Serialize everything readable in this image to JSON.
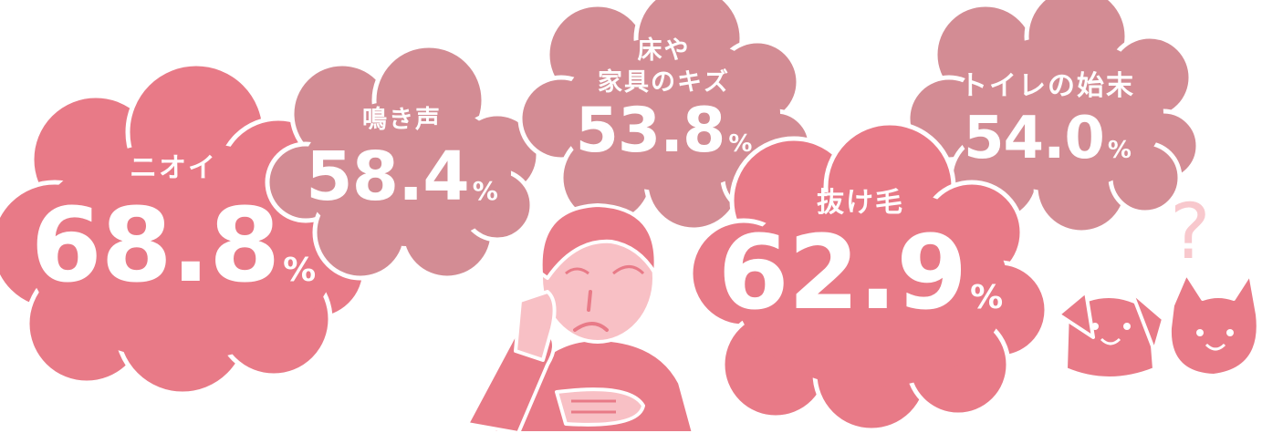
{
  "colors": {
    "cloud_primary": "#e87a87",
    "cloud_secondary": "#d38c94",
    "skin": "#f8c0c5",
    "outline": "#ffffff",
    "question_mark": "#f8c8cd"
  },
  "clouds": [
    {
      "label": "ニオイ",
      "value": "68.8",
      "unit": "%"
    },
    {
      "label": "鳴き声",
      "value": "58.4",
      "unit": "%"
    },
    {
      "label_line1": "床や",
      "label_line2": "家具のキズ",
      "value": "53.8",
      "unit": "%"
    },
    {
      "label": "抜け毛",
      "value": "62.9",
      "unit": "%"
    },
    {
      "label": "トイレの始末",
      "value": "54.0",
      "unit": "%"
    }
  ],
  "decorations": {
    "question_mark": "?",
    "icons": [
      "worried-person-icon",
      "dog-icon",
      "cat-icon"
    ]
  }
}
